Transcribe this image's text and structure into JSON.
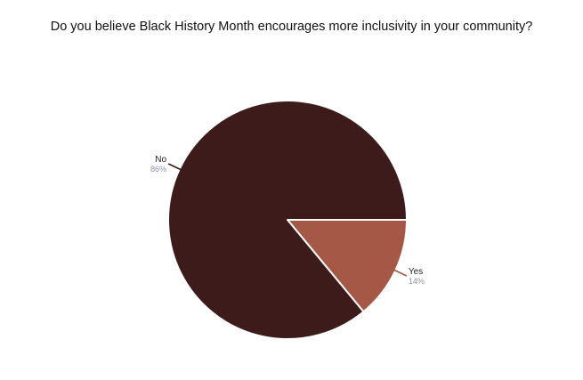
{
  "chart_data": {
    "type": "pie",
    "title": "Do you believe Black History Month encourages more inclusivity in your community?",
    "slices": [
      {
        "label": "No",
        "value": 86,
        "percent_label": "86%",
        "color": "#3d1b1a"
      },
      {
        "label": "Yes",
        "value": 14,
        "percent_label": "14%",
        "color": "#a65846"
      }
    ]
  }
}
